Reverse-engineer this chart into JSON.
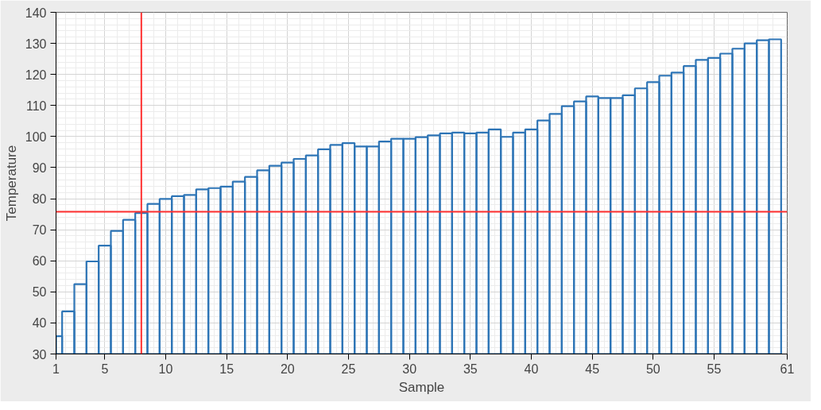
{
  "chart_data": {
    "type": "bar",
    "xlabel": "Sample",
    "ylabel": "Temperature",
    "x": [
      1,
      2,
      3,
      4,
      5,
      6,
      7,
      8,
      9,
      10,
      11,
      12,
      13,
      14,
      15,
      16,
      17,
      18,
      19,
      20,
      21,
      22,
      23,
      24,
      25,
      26,
      27,
      28,
      29,
      30,
      31,
      32,
      33,
      34,
      35,
      36,
      37,
      38,
      39,
      40,
      41,
      42,
      43,
      44,
      45,
      46,
      47,
      48,
      49,
      50,
      51,
      52,
      53,
      54,
      55,
      56,
      57,
      58,
      59,
      60
    ],
    "series": [
      {
        "color": "#2e75b6",
        "values": [
          35.7,
          43.7,
          52.5,
          59.8,
          64.9,
          69.6,
          73.2,
          75.4,
          78.3,
          79.9,
          80.8,
          81.2,
          83,
          83.4,
          83.9,
          85.5,
          87,
          89.1,
          90.6,
          91.6,
          92.8,
          93.9,
          95.9,
          97.3,
          97.9,
          96.8,
          96.8,
          98.4,
          99.3,
          99.3,
          99.8,
          100.4,
          101,
          101.3,
          101,
          101.3,
          102.3,
          99.9,
          101.3,
          102.3,
          105.2,
          107.3,
          109.8,
          111.3,
          112.9,
          112.4,
          112.4,
          113.3,
          115.5,
          117.5,
          119.6,
          120.6,
          122.7,
          124.7,
          125.3,
          126.7,
          128.3,
          130,
          131,
          131.3
        ]
      }
    ],
    "xlim": [
      1,
      61
    ],
    "xticks": [
      1,
      5,
      10,
      15,
      20,
      25,
      30,
      35,
      40,
      45,
      50,
      55,
      61
    ],
    "ylim": [
      30,
      140
    ],
    "yticks": [
      30,
      40,
      50,
      60,
      70,
      80,
      90,
      100,
      110,
      120,
      130,
      140
    ],
    "grid": true,
    "ref_lines": [
      {
        "axis": "x",
        "value": 8,
        "color": "#ff3030"
      },
      {
        "axis": "y",
        "value": 75.8,
        "color": "#ff3030"
      }
    ]
  }
}
